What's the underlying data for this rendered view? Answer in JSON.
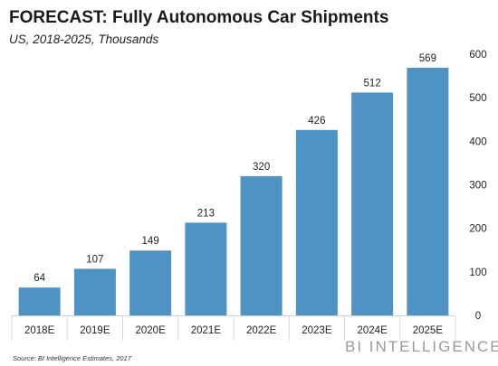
{
  "chart_data": {
    "type": "bar",
    "title": "FORECAST: Fully Autonomous Car Shipments",
    "subtitle": "US, 2018-2025, Thousands",
    "categories": [
      "2018E",
      "2019E",
      "2020E",
      "2021E",
      "2022E",
      "2023E",
      "2024E",
      "2025E"
    ],
    "values": [
      64,
      107,
      149,
      213,
      320,
      426,
      512,
      569
    ],
    "xlabel": "",
    "ylabel": "",
    "ylim": [
      0,
      600
    ],
    "yticks": [
      0,
      100,
      200,
      300,
      400,
      500,
      600
    ],
    "y_axis_side": "right",
    "grid": false,
    "legend": "none",
    "data_labels": true,
    "bar_color": "#4f93c4"
  },
  "footer": {
    "source": "Source: BI Intelligence Estimates, 2017",
    "brand": "BI INTELLIGENCE"
  }
}
